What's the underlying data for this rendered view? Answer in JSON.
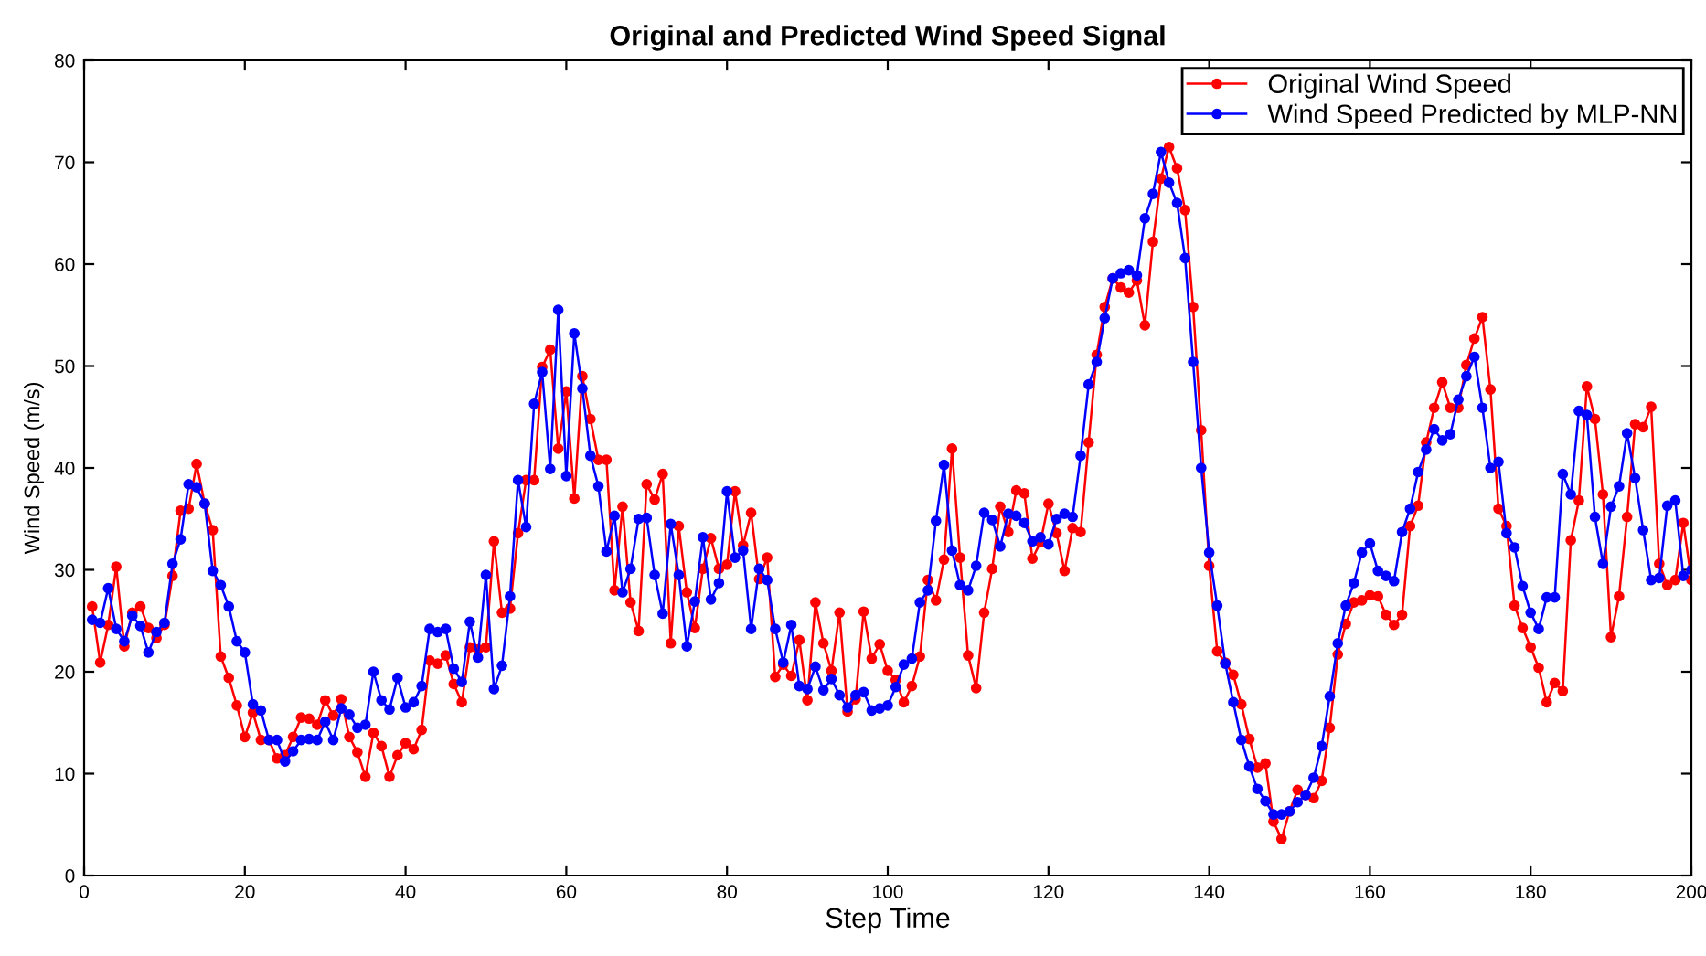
{
  "chart_data": {
    "type": "line",
    "title": "Original and Predicted Wind Speed Signal",
    "xlabel": "Step Time",
    "ylabel": "Wind Speed (m/s)",
    "x": [
      1,
      2,
      3,
      4,
      5,
      6,
      7,
      8,
      9,
      10,
      11,
      12,
      13,
      14,
      15,
      16,
      17,
      18,
      19,
      20,
      21,
      22,
      23,
      24,
      25,
      26,
      27,
      28,
      29,
      30,
      31,
      32,
      33,
      34,
      35,
      36,
      37,
      38,
      39,
      40,
      41,
      42,
      43,
      44,
      45,
      46,
      47,
      48,
      49,
      50,
      51,
      52,
      53,
      54,
      55,
      56,
      57,
      58,
      59,
      60,
      61,
      62,
      63,
      64,
      65,
      66,
      67,
      68,
      69,
      70,
      71,
      72,
      73,
      74,
      75,
      76,
      77,
      78,
      79,
      80,
      81,
      82,
      83,
      84,
      85,
      86,
      87,
      88,
      89,
      90,
      91,
      92,
      93,
      94,
      95,
      96,
      97,
      98,
      99,
      100,
      101,
      102,
      103,
      104,
      105,
      106,
      107,
      108,
      109,
      110,
      111,
      112,
      113,
      114,
      115,
      116,
      117,
      118,
      119,
      120,
      121,
      122,
      123,
      124,
      125,
      126,
      127,
      128,
      129,
      130,
      131,
      132,
      133,
      134,
      135,
      136,
      137,
      138,
      139,
      140,
      141,
      142,
      143,
      144,
      145,
      146,
      147,
      148,
      149,
      150,
      151,
      152,
      153,
      154,
      155,
      156,
      157,
      158,
      159,
      160,
      161,
      162,
      163,
      164,
      165,
      166,
      167,
      168,
      169,
      170,
      171,
      172,
      173,
      174,
      175,
      176,
      177,
      178,
      179,
      180,
      181,
      182,
      183,
      184,
      185,
      186,
      187,
      188,
      189,
      190,
      191,
      192,
      193,
      194,
      195,
      196,
      197,
      198,
      199,
      200
    ],
    "series": [
      {
        "name": "Original Wind Speed",
        "color": "#ff0000",
        "values": [
          26.4,
          20.9,
          24.6,
          30.3,
          22.5,
          25.8,
          26.4,
          24.3,
          23.3,
          24.6,
          29.4,
          35.8,
          36,
          40.4,
          36.5,
          33.9,
          21.5,
          19.4,
          16.7,
          13.6,
          16,
          13.3,
          13.3,
          11.5,
          11.8,
          13.6,
          15.5,
          15.4,
          14.8,
          17.2,
          15.7,
          17.3,
          13.6,
          12.1,
          9.7,
          14,
          12.7,
          9.7,
          11.8,
          13,
          12.4,
          14.3,
          21.1,
          20.8,
          21.6,
          18.8,
          17,
          22.4,
          22.2,
          22.4,
          32.8,
          25.8,
          26.2,
          33.6,
          38.8,
          38.8,
          49.9,
          51.6,
          41.9,
          47.5,
          37,
          49,
          44.8,
          40.8,
          40.8,
          28,
          36.2,
          26.8,
          24,
          38.4,
          36.9,
          39.4,
          22.8,
          34.3,
          27.8,
          24.3,
          30.1,
          33.1,
          30.1,
          30.5,
          37.7,
          32.4,
          35.6,
          29.1,
          31.2,
          19.5,
          20.7,
          19.6,
          23.1,
          17.2,
          26.8,
          22.8,
          20.1,
          25.8,
          16.1,
          17.3,
          25.9,
          21.3,
          22.7,
          20.1,
          19.2,
          17,
          18.6,
          21.5,
          29,
          27,
          31,
          41.9,
          31.2,
          21.6,
          18.4,
          25.8,
          30.1,
          36.2,
          33.7,
          37.8,
          37.5,
          31.1,
          32.7,
          36.5,
          33.6,
          29.9,
          34.1,
          33.7,
          42.5,
          51.1,
          55.8,
          58.6,
          57.7,
          57.2,
          58.4,
          54,
          62.2,
          68.4,
          71.5,
          69.4,
          65.3,
          55.8,
          43.7,
          30.4,
          22,
          20.9,
          19.7,
          16.8,
          13.4,
          10.6,
          11,
          5.3,
          3.6,
          6.3,
          8.4,
          7.9,
          7.6,
          9.3,
          14.5,
          21.7,
          24.7,
          26.8,
          27,
          27.5,
          27.4,
          25.6,
          24.6,
          25.6,
          34.3,
          36.3,
          42.5,
          45.9,
          48.4,
          45.9,
          45.9,
          50.1,
          52.7,
          54.8,
          47.7,
          36,
          34.3,
          26.5,
          24.3,
          22.4,
          20.4,
          17,
          18.9,
          18.1,
          32.9,
          36.8,
          48,
          44.8,
          37.4,
          23.4,
          27.4,
          35.2,
          44.3,
          44,
          46,
          30.6,
          28.5,
          29,
          34.6,
          29
        ]
      },
      {
        "name": "Wind Speed Predicted by MLP-NN",
        "color": "#0000ff",
        "values": [
          25.1,
          24.8,
          28.2,
          24.2,
          23,
          25.5,
          24.5,
          21.9,
          23.9,
          24.8,
          30.6,
          33,
          38.4,
          38.1,
          36.5,
          29.9,
          28.5,
          26.4,
          23,
          21.9,
          16.8,
          16.2,
          13.3,
          13.3,
          11.2,
          12.2,
          13.3,
          13.4,
          13.3,
          15.1,
          13.3,
          16.4,
          15.8,
          14.5,
          14.8,
          20,
          17.2,
          16.3,
          19.4,
          16.5,
          17,
          18.6,
          24.2,
          23.9,
          24.2,
          20.3,
          19,
          24.9,
          21.4,
          29.5,
          18.3,
          20.6,
          27.4,
          38.8,
          34.2,
          46.3,
          49.4,
          39.9,
          55.5,
          39.2,
          53.2,
          47.8,
          41.2,
          38.2,
          31.8,
          35.3,
          27.8,
          30.1,
          35,
          35.1,
          29.5,
          25.7,
          34.5,
          29.5,
          22.5,
          26.9,
          33.2,
          27.1,
          28.7,
          37.7,
          31.2,
          31.9,
          24.2,
          30.1,
          29,
          24.2,
          20.9,
          24.6,
          18.6,
          18.3,
          20.5,
          18.2,
          19.3,
          17.7,
          16.5,
          17.7,
          18,
          16.2,
          16.4,
          16.7,
          18.5,
          20.7,
          21.3,
          26.8,
          28,
          34.8,
          40.3,
          31.9,
          28.5,
          28,
          30.4,
          35.6,
          34.9,
          32.3,
          35.5,
          35.3,
          34.6,
          32.8,
          33.2,
          32.5,
          35,
          35.5,
          35.2,
          41.2,
          48.2,
          50.4,
          54.7,
          58.6,
          59.1,
          59.4,
          58.9,
          64.5,
          66.9,
          71,
          68,
          66,
          60.6,
          50.4,
          40,
          31.7,
          26.5,
          20.8,
          17,
          13.3,
          10.7,
          8.5,
          7.3,
          6,
          6,
          6.3,
          7.2,
          7.9,
          9.6,
          12.7,
          17.6,
          22.8,
          26.5,
          28.7,
          31.7,
          32.6,
          29.9,
          29.4,
          28.9,
          33.7,
          36,
          39.6,
          41.8,
          43.8,
          42.7,
          43.3,
          46.7,
          49,
          50.9,
          45.9,
          40,
          40.6,
          33.6,
          32.2,
          28.4,
          25.8,
          24.2,
          27.3,
          27.3,
          39.4,
          37.4,
          45.6,
          45.2,
          35.2,
          30.6,
          36.2,
          38.2,
          43.4,
          39,
          33.9,
          29,
          29.2,
          36.3,
          36.8,
          29.4,
          30
        ]
      }
    ],
    "xlim": [
      0,
      200
    ],
    "xticks": [
      0,
      20,
      40,
      60,
      80,
      100,
      120,
      140,
      160,
      180,
      200
    ],
    "ylim": [
      0,
      80
    ],
    "yticks": [
      0,
      10,
      20,
      30,
      40,
      50,
      60,
      70,
      80
    ],
    "grid": false,
    "legend": "top right",
    "marker": "circle",
    "line_style": "solid"
  }
}
